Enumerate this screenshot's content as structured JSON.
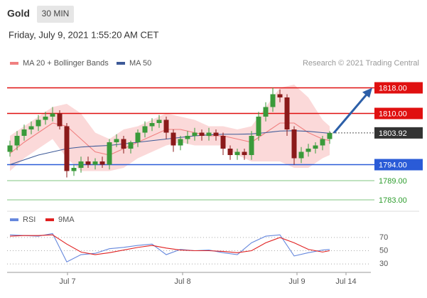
{
  "header": {
    "title": "Gold",
    "timeframe": "30 MIN",
    "date": "Friday, July 9, 2021 1:55:20 AM CET",
    "credit": "Research © 2021 Trading Central"
  },
  "chart_data": [
    {
      "type": "candlestick",
      "ylim": [
        1781,
        1821
      ],
      "xlim": [
        -0.4,
        50.8
      ],
      "xticks": [
        {
          "value": 8.1,
          "label": "Jul 7"
        },
        {
          "value": 24.3,
          "label": "Jul 8"
        },
        {
          "value": 40.4,
          "label": "Jul 9"
        },
        {
          "value": 47.3,
          "label": "Jul 14"
        }
      ],
      "up_color": "#3a9a3a",
      "down_color": "#8b1a1a",
      "open": [
        1798,
        1800,
        1803,
        1805,
        1806,
        1808,
        1809,
        1810,
        1806,
        1792,
        1793,
        1795,
        1794,
        1795,
        1794,
        1801,
        1802,
        1799,
        1801,
        1804,
        1806,
        1807,
        1808,
        1804,
        1800,
        1802,
        1803,
        1804,
        1803,
        1804,
        1803,
        1799,
        1797,
        1798,
        1797,
        1803,
        1809,
        1812,
        1816,
        1815,
        1805,
        1796,
        1798,
        1799,
        1800,
        1802
      ],
      "high": [
        1801.5,
        1804.5,
        1806.5,
        1807.5,
        1809.5,
        1810.5,
        1812,
        1811,
        1807,
        1794,
        1796.5,
        1796.5,
        1796,
        1796.5,
        1802,
        1803.5,
        1803,
        1801.5,
        1805,
        1807.5,
        1808.5,
        1809.5,
        1809,
        1805,
        1803,
        1804.5,
        1805.5,
        1805,
        1805.5,
        1805,
        1804,
        1800,
        1799,
        1799,
        1804.5,
        1810.5,
        1813.5,
        1818,
        1817.5,
        1816,
        1806,
        1799.5,
        1800.5,
        1801,
        1803,
        1804.5
      ],
      "low": [
        1796.5,
        1798.5,
        1801.5,
        1803.5,
        1804.5,
        1806.5,
        1807.5,
        1805,
        1790,
        1790.5,
        1791.5,
        1793,
        1792.5,
        1793,
        1792.5,
        1799.5,
        1797.5,
        1797.5,
        1799.5,
        1802.5,
        1804.5,
        1805.5,
        1802,
        1798,
        1798.5,
        1800.5,
        1801.5,
        1801.5,
        1801.5,
        1801.5,
        1797,
        1795.5,
        1795.5,
        1795.5,
        1795.5,
        1801.5,
        1807.5,
        1810.5,
        1813.5,
        1803,
        1794,
        1794.5,
        1796.5,
        1797.5,
        1798.5,
        1800.5
      ],
      "close": [
        1800,
        1803,
        1805,
        1806,
        1808,
        1809,
        1810,
        1806,
        1792,
        1793,
        1795,
        1794,
        1795,
        1794,
        1801,
        1802,
        1799,
        1801,
        1804,
        1806,
        1807,
        1808,
        1804,
        1800,
        1802,
        1803,
        1804,
        1803,
        1804,
        1803,
        1799,
        1797,
        1798,
        1797,
        1803,
        1809,
        1812,
        1816,
        1815,
        1805,
        1796,
        1798,
        1799,
        1800,
        1802,
        1803.9
      ],
      "indicator_x": [
        0,
        2,
        4,
        6,
        8,
        10,
        12,
        14,
        16,
        18,
        20,
        22,
        24,
        26,
        28,
        30,
        32,
        34,
        36,
        38,
        40,
        42,
        44,
        45
      ],
      "series": [
        {
          "name": "MA 20 + Bollinger Bands",
          "color": "#f08080",
          "band_color": "#f9c9c9",
          "values": [
            1797.5,
            1801,
            1804,
            1807,
            1806,
            1802,
            1798,
            1797,
            1799,
            1801,
            1803,
            1805,
            1805,
            1804,
            1803,
            1803,
            1802,
            1801,
            1804,
            1807,
            1807,
            1804,
            1802,
            1801.5
          ],
          "upper": [
            1803,
            1806,
            1809,
            1812,
            1813,
            1810,
            1804,
            1802,
            1805,
            1806,
            1808,
            1810,
            1809,
            1808,
            1806,
            1806,
            1805,
            1806,
            1812,
            1818,
            1819,
            1815,
            1808,
            1806
          ],
          "lower": [
            1792,
            1796,
            1799,
            1802,
            1796,
            1792,
            1792,
            1792,
            1793,
            1796,
            1798,
            1800,
            1801,
            1800,
            1800,
            1800,
            1797,
            1795,
            1795,
            1795,
            1793,
            1793,
            1796,
            1797
          ]
        },
        {
          "name": "MA 50",
          "color": "#3d5a98",
          "values": [
            1794,
            1795.5,
            1797,
            1798,
            1799,
            1799.5,
            1799.8,
            1800,
            1800.5,
            1801,
            1801.5,
            1802,
            1802.5,
            1803,
            1803.3,
            1803.5,
            1803.5,
            1803.6,
            1804,
            1804.5,
            1804.6,
            1804.4,
            1804,
            1803.8
          ]
        }
      ],
      "levels": [
        {
          "value": 1818,
          "label": "1818.00",
          "color": "#e01010",
          "boxed": true
        },
        {
          "value": 1810,
          "label": "1810.00",
          "color": "#e01010",
          "boxed": true
        },
        {
          "value": 1794,
          "label": "1794.00",
          "color": "#2a5bd7",
          "boxed": true
        },
        {
          "value": 1789,
          "label": "1789.00",
          "color": "#2e9d2e",
          "boxed": false
        },
        {
          "value": 1783,
          "label": "1783.00",
          "color": "#2e9d2e",
          "boxed": false
        }
      ],
      "last": 1803.92,
      "last_color": "#333",
      "arrow_color": "#2c5fa8"
    },
    {
      "type": "line",
      "ylim": [
        15,
        85
      ],
      "yticks": [
        70,
        50,
        30
      ],
      "x": [
        0,
        2,
        4,
        6,
        8,
        10,
        12,
        14,
        16,
        18,
        20,
        22,
        24,
        26,
        28,
        30,
        32,
        34,
        36,
        38,
        40,
        42,
        44,
        45
      ],
      "series": [
        {
          "name": "RSI",
          "color": "#6688dd",
          "values": [
            74,
            73,
            72,
            76,
            33,
            44,
            46,
            53,
            55,
            58,
            60,
            44,
            52,
            50,
            51,
            47,
            44,
            62,
            72,
            74,
            42,
            47,
            51,
            52
          ]
        },
        {
          "name": "9MA",
          "color": "#e02020",
          "values": [
            72,
            73,
            73,
            74,
            60,
            48,
            44,
            47,
            51,
            55,
            58,
            54,
            51,
            50,
            50,
            49,
            47,
            50,
            62,
            70,
            62,
            52,
            48,
            50
          ]
        }
      ]
    }
  ]
}
